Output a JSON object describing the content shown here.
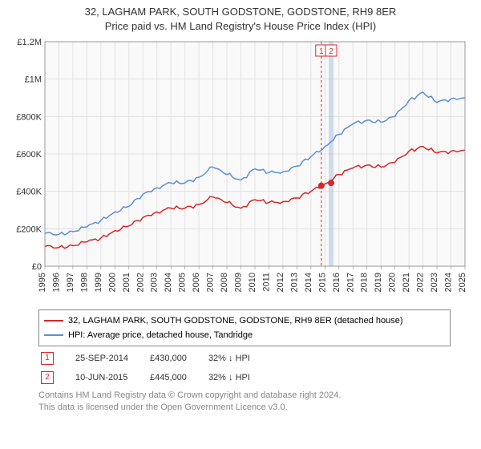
{
  "title": {
    "line1": "32, LAGHAM PARK, SOUTH GODSTONE, GODSTONE, RH9 8ER",
    "line2": "Price paid vs. HM Land Registry's House Price Index (HPI)"
  },
  "chart": {
    "type": "line",
    "background_color": "#ffffff",
    "plot_background": "#f9f9f9",
    "grid_color": "#e2e2e2",
    "axis_color": "#888888",
    "label_fontsize": 11,
    "xlim": [
      1995,
      2025
    ],
    "ylim": [
      0,
      1200000
    ],
    "ytick_step": 200000,
    "yticks": [
      "£0",
      "£200K",
      "£400K",
      "£600K",
      "£800K",
      "£1M",
      "£1.2M"
    ],
    "xticks": [
      1995,
      1996,
      1997,
      1998,
      1999,
      2000,
      2001,
      2002,
      2003,
      2004,
      2005,
      2006,
      2007,
      2008,
      2009,
      2010,
      2011,
      2012,
      2013,
      2014,
      2015,
      2016,
      2017,
      2018,
      2019,
      2020,
      2021,
      2022,
      2023,
      2024,
      2025
    ],
    "series": [
      {
        "name": "property",
        "label": "32, LAGHAM PARK, SOUTH GODSTONE, GODSTONE, RH9 8ER (detached house)",
        "color": "#d62728",
        "line_width": 1.5,
        "values": [
          [
            1995,
            105000
          ],
          [
            1996,
            100000
          ],
          [
            1997,
            110000
          ],
          [
            1998,
            130000
          ],
          [
            1999,
            150000
          ],
          [
            2000,
            190000
          ],
          [
            2001,
            215000
          ],
          [
            2002,
            260000
          ],
          [
            2003,
            290000
          ],
          [
            2004,
            310000
          ],
          [
            2005,
            310000
          ],
          [
            2006,
            330000
          ],
          [
            2007,
            370000
          ],
          [
            2008,
            340000
          ],
          [
            2009,
            310000
          ],
          [
            2010,
            355000
          ],
          [
            2011,
            340000
          ],
          [
            2012,
            345000
          ],
          [
            2013,
            365000
          ],
          [
            2014,
            400000
          ],
          [
            2015,
            440000
          ],
          [
            2016,
            490000
          ],
          [
            2017,
            525000
          ],
          [
            2018,
            540000
          ],
          [
            2019,
            530000
          ],
          [
            2020,
            555000
          ],
          [
            2021,
            615000
          ],
          [
            2022,
            640000
          ],
          [
            2023,
            605000
          ],
          [
            2024,
            615000
          ],
          [
            2025,
            620000
          ]
        ]
      },
      {
        "name": "hpi",
        "label": "HPI: Average price, detached house, Tandridge",
        "color": "#5b8fd6",
        "line_width": 1.5,
        "values": [
          [
            1995,
            175000
          ],
          [
            1996,
            170000
          ],
          [
            1997,
            185000
          ],
          [
            1998,
            210000
          ],
          [
            1999,
            245000
          ],
          [
            2000,
            290000
          ],
          [
            2001,
            320000
          ],
          [
            2002,
            385000
          ],
          [
            2003,
            420000
          ],
          [
            2004,
            445000
          ],
          [
            2005,
            445000
          ],
          [
            2006,
            475000
          ],
          [
            2007,
            530000
          ],
          [
            2008,
            490000
          ],
          [
            2009,
            460000
          ],
          [
            2010,
            520000
          ],
          [
            2011,
            500000
          ],
          [
            2012,
            505000
          ],
          [
            2013,
            535000
          ],
          [
            2014,
            585000
          ],
          [
            2015,
            640000
          ],
          [
            2016,
            705000
          ],
          [
            2017,
            760000
          ],
          [
            2018,
            780000
          ],
          [
            2019,
            770000
          ],
          [
            2020,
            800000
          ],
          [
            2021,
            885000
          ],
          [
            2022,
            930000
          ],
          [
            2023,
            875000
          ],
          [
            2024,
            895000
          ],
          [
            2025,
            900000
          ]
        ]
      }
    ],
    "markers": [
      {
        "id": "1",
        "x": 2014.74,
        "y": 430000,
        "date": "25-SEP-2014",
        "price": "£430,000",
        "delta": "32% ↓ HPI",
        "box_color": "#d62728",
        "vline_color": "#d62728",
        "vline_dash": "3,3"
      },
      {
        "id": "2",
        "x": 2015.44,
        "y": 445000,
        "date": "10-JUN-2015",
        "price": "£445,000",
        "delta": "32% ↓ HPI",
        "box_color": "#d62728",
        "vline_color": "#9ab5de",
        "vline_dash": "none",
        "vline_width": 6
      }
    ]
  },
  "footer": {
    "line1": "Contains HM Land Registry data © Crown copyright and database right 2024.",
    "line2": "This data is licensed under the Open Government Licence v3.0."
  }
}
